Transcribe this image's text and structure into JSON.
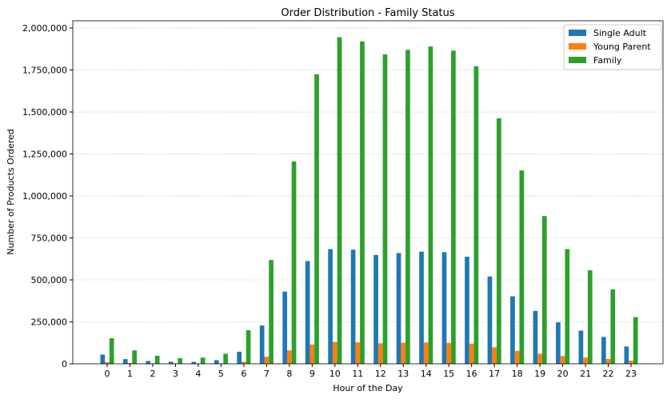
{
  "chart_data": {
    "type": "bar",
    "title": "Order Distribution - Family Status",
    "xlabel": "Hour of the Day",
    "ylabel": "Number of Products Ordered",
    "ylim": [
      0,
      2043000
    ],
    "yticks": [
      0,
      250000,
      500000,
      750000,
      1000000,
      1250000,
      1500000,
      1750000,
      2000000
    ],
    "ytick_labels": [
      "0",
      "250,000",
      "500,000",
      "750,000",
      "1,000,000",
      "1,250,000",
      "1,500,000",
      "1,750,000",
      "2,000,000"
    ],
    "grid": "horizontal dotted",
    "legend_position": "top-right",
    "categories": [
      "0",
      "1",
      "2",
      "3",
      "4",
      "5",
      "6",
      "7",
      "8",
      "9",
      "10",
      "11",
      "12",
      "13",
      "14",
      "15",
      "16",
      "17",
      "18",
      "19",
      "20",
      "21",
      "22",
      "23"
    ],
    "series": [
      {
        "name": "Single Adult",
        "color": "#1f77b4",
        "values": [
          55000,
          28000,
          17000,
          12000,
          12000,
          22000,
          72000,
          228000,
          430000,
          612000,
          683000,
          680000,
          648000,
          660000,
          668000,
          665000,
          638000,
          520000,
          402000,
          315000,
          247000,
          198000,
          160000,
          103000
        ]
      },
      {
        "name": "Young Parent",
        "color": "#ff7f0e",
        "values": [
          10000,
          5000,
          3000,
          2000,
          2000,
          3000,
          12000,
          42000,
          80000,
          115000,
          130000,
          128000,
          122000,
          125000,
          127000,
          125000,
          120000,
          98000,
          77000,
          60000,
          46000,
          37000,
          29000,
          19000
        ]
      },
      {
        "name": "Family",
        "color": "#2ca02c",
        "values": [
          152000,
          80000,
          48000,
          33000,
          37000,
          60000,
          200000,
          618000,
          1205000,
          1725000,
          1945000,
          1920000,
          1843000,
          1870000,
          1890000,
          1865000,
          1772000,
          1462000,
          1152000,
          880000,
          683000,
          557000,
          443000,
          278000
        ]
      }
    ]
  }
}
